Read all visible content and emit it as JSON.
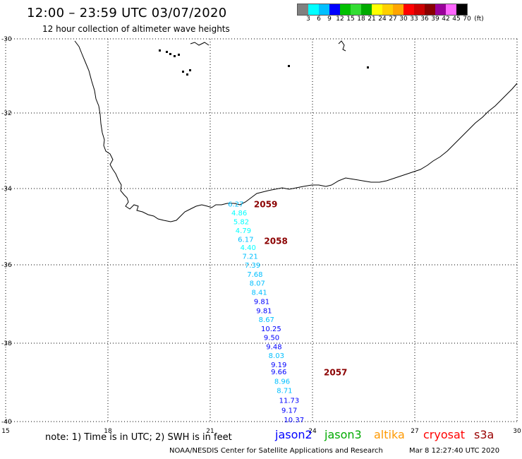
{
  "header": {
    "title": "12:00 – 23:59 UTC 03/07/2020",
    "subtitle": "12 hour collection of altimeter wave heights"
  },
  "legend": {
    "labels": [
      "3",
      "6",
      "9",
      "12",
      "15",
      "18",
      "21",
      "24",
      "27",
      "30",
      "33",
      "36",
      "39",
      "42",
      "45",
      "70"
    ],
    "unit": "(ft)",
    "colors": [
      "#808080",
      "#00ffff",
      "#00bfff",
      "#0000ff",
      "#00c000",
      "#33dd33",
      "#00aa00",
      "#ffff00",
      "#ffd000",
      "#ffa500",
      "#ff0000",
      "#cc0000",
      "#880000",
      "#990099",
      "#ff66ff",
      "#000000"
    ]
  },
  "map": {
    "lon_ticks": [
      "15",
      "18",
      "21",
      "24",
      "27",
      "30"
    ],
    "lat_ticks": [
      "-30",
      "-32",
      "-34",
      "-36",
      "-38",
      "-40"
    ],
    "pass_labels": [
      {
        "text": "2059",
        "lon": 21.95,
        "lat": -34.42
      },
      {
        "text": "2058",
        "lon": 22.25,
        "lat": -35.38
      },
      {
        "text": "2057",
        "lon": 24.0,
        "lat": -38.75
      }
    ],
    "track_color": "#8b0000",
    "wave_points": [
      {
        "value": "6.27",
        "lon": 21.5,
        "lat": -34.4,
        "color": "#00bfff"
      },
      {
        "value": "4.86",
        "lon": 21.6,
        "lat": -34.63,
        "color": "#00ffff"
      },
      {
        "value": "5.82",
        "lon": 21.66,
        "lat": -34.86,
        "color": "#00ffff"
      },
      {
        "value": "4.79",
        "lon": 21.72,
        "lat": -35.09,
        "color": "#00ffff"
      },
      {
        "value": "6.17",
        "lon": 21.79,
        "lat": -35.32,
        "color": "#00bfff"
      },
      {
        "value": "4.40",
        "lon": 21.86,
        "lat": -35.54,
        "color": "#00ffff"
      },
      {
        "value": "7.21",
        "lon": 21.92,
        "lat": -35.77,
        "color": "#00bfff"
      },
      {
        "value": "7.39",
        "lon": 21.99,
        "lat": -36.0,
        "color": "#00bfff"
      },
      {
        "value": "7.68",
        "lon": 22.06,
        "lat": -36.23,
        "color": "#00bfff"
      },
      {
        "value": "8.07",
        "lon": 22.13,
        "lat": -36.46,
        "color": "#00bfff"
      },
      {
        "value": "8.41",
        "lon": 22.19,
        "lat": -36.69,
        "color": "#00bfff"
      },
      {
        "value": "9.81",
        "lon": 22.26,
        "lat": -36.93,
        "color": "#0000ff"
      },
      {
        "value": "9.81",
        "lon": 22.33,
        "lat": -37.16,
        "color": "#0000ff"
      },
      {
        "value": "8.67",
        "lon": 22.4,
        "lat": -37.39,
        "color": "#00bfff"
      },
      {
        "value": "10.25",
        "lon": 22.47,
        "lat": -37.62,
        "color": "#0000ff"
      },
      {
        "value": "9.50",
        "lon": 22.55,
        "lat": -37.85,
        "color": "#0000ff"
      },
      {
        "value": "9.48",
        "lon": 22.62,
        "lat": -38.08,
        "color": "#0000ff"
      },
      {
        "value": "8.03",
        "lon": 22.69,
        "lat": -38.31,
        "color": "#00bfff"
      },
      {
        "value": "9.19",
        "lon": 22.76,
        "lat": -38.54,
        "color": "#0000ff"
      },
      {
        "value": "9.66",
        "lon": 22.76,
        "lat": -38.72,
        "color": "#0000ff"
      },
      {
        "value": "8.96",
        "lon": 22.86,
        "lat": -38.96,
        "color": "#00bfff"
      },
      {
        "value": "8.71",
        "lon": 22.93,
        "lat": -39.2,
        "color": "#00bfff"
      },
      {
        "value": "11.73",
        "lon": 23.0,
        "lat": -39.45,
        "color": "#0000ff"
      },
      {
        "value": "9.17",
        "lon": 23.07,
        "lat": -39.7,
        "color": "#0000ff"
      },
      {
        "value": "10.37",
        "lon": 23.14,
        "lat": -39.95,
        "color": "#0000ff"
      }
    ]
  },
  "footer": {
    "note": "note:  1) Time is in UTC;  2) SWH is in feet",
    "satellites": [
      {
        "name": "jason2",
        "color": "#0000ff"
      },
      {
        "name": "jason3",
        "color": "#00aa00"
      },
      {
        "name": "altika",
        "color": "#ff9900"
      },
      {
        "name": "cryosat",
        "color": "#ff0000"
      },
      {
        "name": "s3a",
        "color": "#990000"
      }
    ],
    "credit": "NOAA/NESDIS Center for Satellite Applications and Research",
    "timestamp": "Mar  8 12:27:40 UTC 2020"
  }
}
